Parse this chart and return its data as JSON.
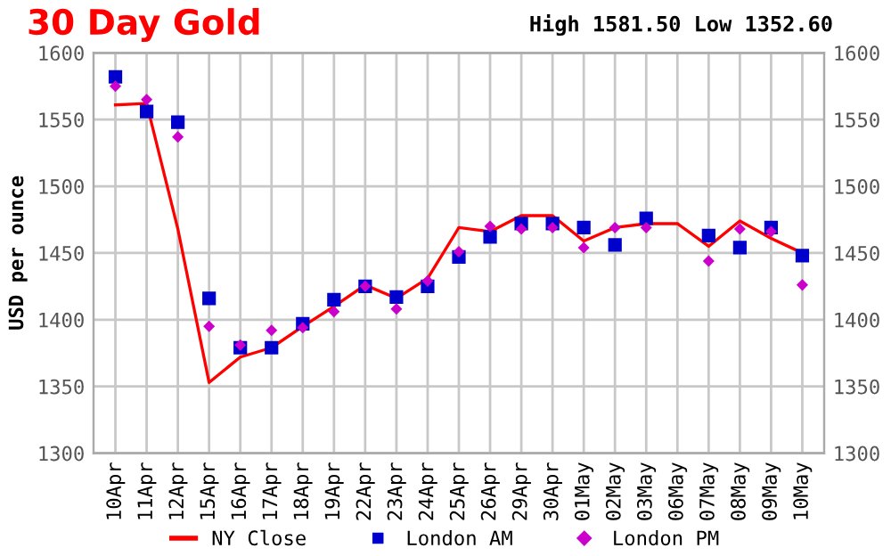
{
  "chart_data": {
    "type": "line",
    "title": "30 Day Gold",
    "subtitle": "High 1581.50 Low 1352.60",
    "ylabel": "USD per ounce",
    "categories": [
      "10Apr",
      "11Apr",
      "12Apr",
      "15Apr",
      "16Apr",
      "17Apr",
      "18Apr",
      "19Apr",
      "22Apr",
      "23Apr",
      "24Apr",
      "25Apr",
      "26Apr",
      "29Apr",
      "30Apr",
      "01May",
      "02May",
      "03May",
      "06May",
      "07May",
      "08May",
      "09May",
      "10May"
    ],
    "series": [
      {
        "name": "NY Close",
        "color": "#ff0000",
        "marker": "none",
        "values": [
          1561,
          1562,
          1468,
          1353,
          1372,
          1379,
          1395,
          1410,
          1426,
          1416,
          1431,
          1469,
          1466,
          1478,
          1478,
          1459,
          1469,
          1472,
          1472,
          1455,
          1474,
          1461,
          1450
        ]
      },
      {
        "name": "London AM",
        "type": "scatter",
        "color": "#0000cc",
        "marker": "square",
        "values": [
          1582,
          1556,
          1548,
          1416,
          1379,
          1379,
          1397,
          1415,
          1425,
          1417,
          1425,
          1447,
          1462,
          1472,
          1472,
          1469,
          1456,
          1476,
          null,
          1463,
          1454,
          1469,
          1448
        ]
      },
      {
        "name": "London PM",
        "type": "scatter",
        "color": "#cc00cc",
        "marker": "diamond",
        "values": [
          1575,
          1565,
          1537,
          1395,
          1381,
          1392,
          1394,
          1406,
          1425,
          1408,
          1429,
          1451,
          1470,
          1468,
          1469,
          1454,
          1469,
          1469,
          null,
          1444,
          1468,
          1466,
          1426
        ]
      }
    ],
    "ylim": [
      1300,
      1600
    ],
    "yticks": [
      1300,
      1350,
      1400,
      1450,
      1500,
      1550,
      1600
    ],
    "y2lim": [
      1300,
      1600
    ],
    "y2ticks": [
      1300,
      1350,
      1400,
      1450,
      1500,
      1550,
      1600
    ],
    "grid": true,
    "legend": "bottom"
  }
}
